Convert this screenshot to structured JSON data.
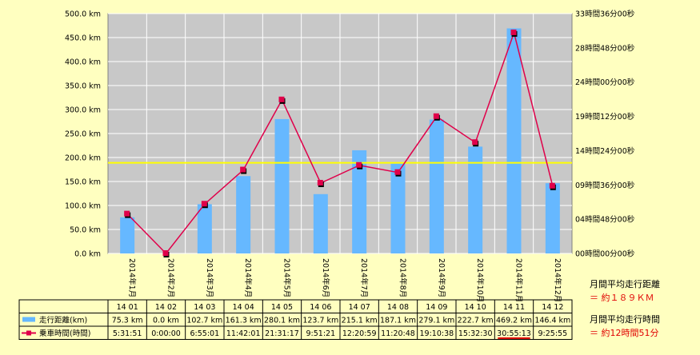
{
  "chart_data": {
    "type": "bar",
    "categories": [
      "2014年1月",
      "2014年2月",
      "2014年3月",
      "2014年4月",
      "2014年5月",
      "2014年6月",
      "2014年7月",
      "2014年8月",
      "2014年9月",
      "2014年10月",
      "2014年11月",
      "2014年12月"
    ],
    "table_headers": [
      "14 01",
      "14 02",
      "14 03",
      "14 04",
      "14 05",
      "14 06",
      "14 07",
      "14 08",
      "14 09",
      "14 10",
      "14 11",
      "14 12"
    ],
    "series": [
      {
        "name": "走行距離(km)",
        "type": "bar",
        "axis": "left",
        "color": "#66b8ff",
        "values": [
          75.3,
          0.0,
          102.7,
          161.3,
          280.1,
          123.7,
          215.1,
          187.1,
          279.1,
          222.7,
          469.2,
          146.4
        ],
        "labels": [
          "75.3 km",
          "0.0 km",
          "102.7 km",
          "161.3 km",
          "280.1 km",
          "123.7 km",
          "215.1 km",
          "187.1 km",
          "279.1 km",
          "222.7 km",
          "469.2 km",
          "146.4 km"
        ]
      },
      {
        "name": "乗車時間(時間)",
        "type": "line",
        "axis": "right",
        "color": "#e0004a",
        "values": [
          5.5308,
          0.0,
          6.9169,
          11.7003,
          21.5214,
          9.8558,
          12.3497,
          11.3467,
          19.1772,
          15.5417,
          30.9203,
          9.4319
        ],
        "labels": [
          "5:31:51",
          "0:00:00",
          "6:55:01",
          "11:42:01",
          "21:31:17",
          "9:51:21",
          "12:20:59",
          "11:20:48",
          "19:10:38",
          "15:32:30",
          "30:55:13",
          "9:25:55"
        ]
      }
    ],
    "y_left": {
      "min": 0,
      "max": 500,
      "ticks": [
        0,
        50,
        100,
        150,
        200,
        250,
        300,
        350,
        400,
        450,
        500
      ],
      "tick_labels": [
        "0.0 km",
        "50.0 km",
        "100.0 km",
        "150.0 km",
        "200.0 km",
        "250.0 km",
        "300.0 km",
        "350.0 km",
        "400.0 km",
        "450.0 km",
        "500.0 km"
      ]
    },
    "y_right": {
      "min": 0,
      "max": 33.6,
      "ticks": [
        0,
        4.8,
        9.6,
        14.4,
        19.2,
        24,
        28.8,
        33.6
      ],
      "tick_labels": [
        "00時間00分00秒",
        "04時間48分00秒",
        "09時間36分00秒",
        "14時間24分00秒",
        "19時間12分00秒",
        "24時間00分00秒",
        "28時間48分00秒",
        "33時間36分00秒"
      ]
    },
    "average_line": {
      "value": 189,
      "color": "#ffff00"
    },
    "grid": true,
    "highlight_label_index": 10
  },
  "summary": {
    "distance_title": "月間平均走行距離",
    "distance_value": "＝ 約１８９ＫＭ",
    "time_title": "月間平均走行時間",
    "time_value": "＝ 約12時間51分"
  }
}
